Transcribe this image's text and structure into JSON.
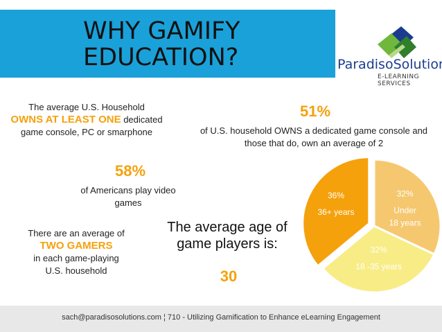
{
  "title_line1": "WHY GAMIFY",
  "title_line2": "EDUCATION?",
  "logo": {
    "brand_bold": "Paradiso",
    "brand_rest": "Solutions",
    "tagline": "E-LEARNING SERVICES"
  },
  "stat1": {
    "line1": "The average U.S. Household",
    "highlight": "OWNS AT LEAST ONE",
    "line2_rest": " dedicated",
    "line3": "game console, PC or smarphone"
  },
  "stat2": {
    "number": "51%",
    "text": "of U.S. household OWNS a dedicated game console and those that do, own an average of 2"
  },
  "stat3": {
    "number": "58%",
    "text": "of Americans play video games"
  },
  "stat4": {
    "line1": "There are an average of",
    "highlight": "TWO GAMERS",
    "line3": "in each game-playing",
    "line4": "U.S. household"
  },
  "age": {
    "text": "The average age of game players is:",
    "number": "30"
  },
  "colors": {
    "accent_orange": "#f5a10c",
    "header_blue": "#1aa1d9",
    "pie_gold": "#f5a10c",
    "pie_tan": "#f5c870",
    "pie_yellow": "#f8ec86"
  },
  "chart_data": {
    "type": "pie",
    "slices": [
      {
        "label": "Under 18 years",
        "value": 32,
        "value_label": "32%",
        "color": "#f5c870"
      },
      {
        "label": "18 -35 years",
        "value": 32,
        "value_label": "32%",
        "color": "#f8ec86"
      },
      {
        "label": "36+ years",
        "value": 36,
        "value_label": "36%",
        "color": "#f5a10c"
      }
    ],
    "exploded": "36+ years",
    "legend": "none"
  },
  "footer": "sach@paradisosolutions.com ¦ 710 - Utilizing Gamification to Enhance eLearning Engagement"
}
